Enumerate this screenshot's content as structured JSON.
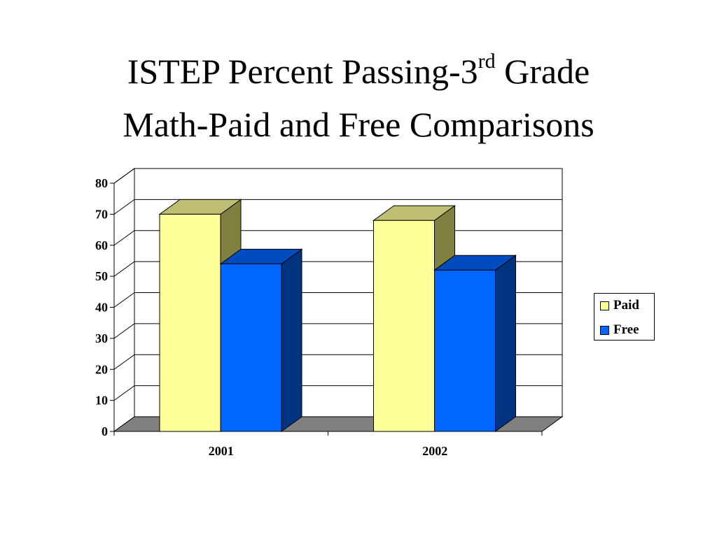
{
  "slide": {
    "title_part1": "ISTEP Percent Passing-3",
    "title_sup": "rd",
    "title_part2": " Grade",
    "title_line2": "Math-Paid and Free Comparisons"
  },
  "chart_data": {
    "type": "bar",
    "style": "3d-clustered-column",
    "categories": [
      "2001",
      "2002"
    ],
    "series": [
      {
        "name": "Paid",
        "values": [
          70,
          68
        ],
        "color": "#FFFF99",
        "top_color": "#BFBF73",
        "side_color": "#808040"
      },
      {
        "name": "Free",
        "values": [
          54,
          52
        ],
        "color": "#0066FF",
        "top_color": "#004CBF",
        "side_color": "#003380"
      }
    ],
    "ylim": [
      0,
      80
    ],
    "yticks": [
      "0",
      "10",
      "20",
      "30",
      "40",
      "50",
      "60",
      "70",
      "80"
    ],
    "grid": true,
    "floor_color": "#808080",
    "legend_position": "right"
  }
}
